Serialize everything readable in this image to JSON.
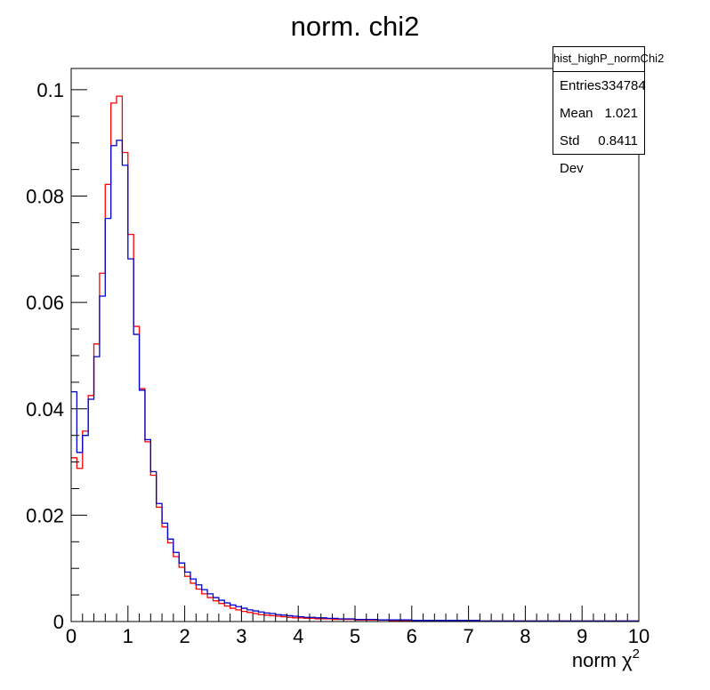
{
  "chart_data": {
    "type": "histogram",
    "title": "norm. chi2",
    "xlabel": "norm χ2",
    "xlabel_base": "norm χ",
    "xlabel_sup": "2",
    "xlim": [
      0,
      10
    ],
    "ylim": [
      0,
      0.104
    ],
    "x_ticks": [
      0,
      1,
      2,
      3,
      4,
      5,
      6,
      7,
      8,
      9,
      10
    ],
    "x_tick_labels": [
      "0",
      "1",
      "2",
      "3",
      "4",
      "5",
      "6",
      "7",
      "8",
      "9",
      "10"
    ],
    "y_ticks": [
      0,
      0.02,
      0.04,
      0.06,
      0.08,
      0.1
    ],
    "y_tick_labels": [
      "0",
      "0.02",
      "0.04",
      "0.06",
      "0.08",
      "0.1"
    ],
    "grid": false,
    "bin_width": 0.1,
    "series": [
      {
        "color": "#ff0000",
        "values": [
          0.0308,
          0.0288,
          0.0358,
          0.0425,
          0.0522,
          0.0655,
          0.0822,
          0.0975,
          0.0988,
          0.0882,
          0.0728,
          0.0555,
          0.0438,
          0.0338,
          0.0275,
          0.0215,
          0.0178,
          0.0148,
          0.0122,
          0.0102,
          0.0085,
          0.0072,
          0.0061,
          0.0052,
          0.0045,
          0.0039,
          0.0034,
          0.0029,
          0.0025,
          0.0022,
          0.0019,
          0.0017,
          0.0015,
          0.0013,
          0.0012,
          0.0011,
          0.001,
          0.0009,
          0.0008,
          0.0007,
          0.0007,
          0.0006,
          0.0006,
          0.0005,
          0.0005,
          0.0005,
          0.0004,
          0.0004,
          0.0004,
          0.0004,
          0.0003,
          0.0003,
          0.0003,
          0.0003,
          0.0003,
          0.0003,
          0.0002,
          0.0002,
          0.0002,
          0.0002,
          0.0002,
          0.0002,
          0.0002,
          0.0002,
          0.0002,
          0.0002,
          0.0002,
          0.0002,
          0.0002,
          0.0002,
          0.0002,
          0.0002,
          0.0001,
          0.0001,
          0.0001,
          0.0001,
          0.0001,
          0.0001,
          0.0001,
          0.0001,
          0.0001,
          0.0001,
          0.0001,
          0.0001,
          0.0001,
          0.0001,
          0.0001,
          0.0001,
          0.0001,
          0.0001,
          0.0001,
          0.0001,
          0.0001,
          0.0001,
          0.0001,
          0.0001,
          0.0001,
          0.0001,
          0.0001,
          0.0001
        ]
      },
      {
        "color": "#0000cc",
        "values": [
          0.0432,
          0.0318,
          0.035,
          0.0418,
          0.0498,
          0.0612,
          0.0758,
          0.0895,
          0.0905,
          0.0858,
          0.0682,
          0.054,
          0.0435,
          0.0342,
          0.0282,
          0.0222,
          0.0185,
          0.0155,
          0.013,
          0.011,
          0.0093,
          0.008,
          0.0069,
          0.006,
          0.0052,
          0.0045,
          0.004,
          0.0035,
          0.0031,
          0.0028,
          0.0025,
          0.0022,
          0.002,
          0.0018,
          0.0016,
          0.0015,
          0.0013,
          0.0012,
          0.0011,
          0.001,
          0.0009,
          0.0008,
          0.0008,
          0.0007,
          0.0007,
          0.0006,
          0.0006,
          0.0005,
          0.0005,
          0.0005,
          0.0004,
          0.0004,
          0.0004,
          0.0004,
          0.0003,
          0.0003,
          0.0003,
          0.0003,
          0.0003,
          0.0003,
          0.0002,
          0.0002,
          0.0002,
          0.0002,
          0.0002,
          0.0002,
          0.0002,
          0.0002,
          0.0002,
          0.0002,
          0.0002,
          0.0002,
          0.0001,
          0.0001,
          0.0001,
          0.0001,
          0.0001,
          0.0001,
          0.0001,
          0.0001,
          0.0001,
          0.0001,
          0.0001,
          0.0001,
          0.0001,
          0.0001,
          0.0001,
          0.0001,
          0.0001,
          0.0001,
          0.0001,
          0.0001,
          0.0001,
          0.0001,
          0.0001,
          0.0001,
          0.0001,
          0.0001,
          0.0001,
          0.0001
        ]
      }
    ],
    "stats_box": {
      "name": "hist_highP_normChi2",
      "rows": [
        {
          "label": "Entries",
          "value": "334784"
        },
        {
          "label": "Mean",
          "value": "1.021"
        },
        {
          "label": "Std Dev",
          "value": "0.8411"
        }
      ]
    }
  }
}
